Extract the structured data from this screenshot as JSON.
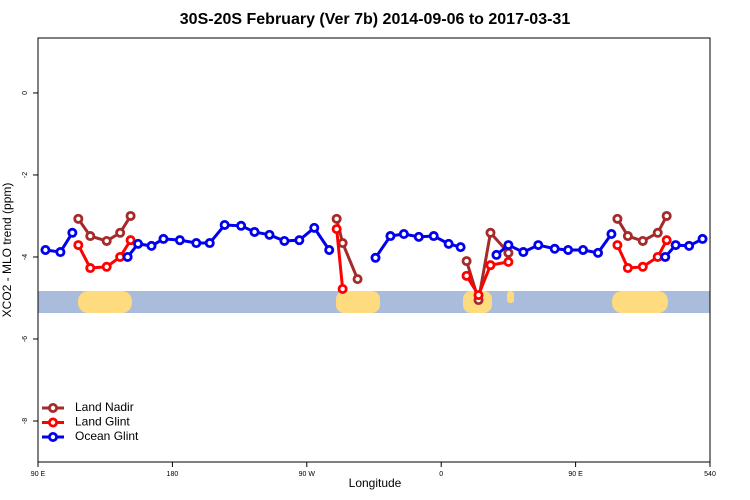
{
  "chart_data": {
    "type": "line",
    "title": "30S-20S February (Ver 7b)   2014-09-06 to 2017-03-31",
    "x_label": "Longitude",
    "y_label": "XCO2 - MLO trend (ppm)",
    "xlim": [
      90,
      540
    ],
    "ylim": [
      -9,
      1.34
    ],
    "xticks": [
      {
        "value": 90,
        "label": "90 E"
      },
      180,
      {
        "value": 270,
        "label": "90 W"
      },
      {
        "value": 360,
        "label": "0"
      },
      {
        "value": 450,
        "label": "90 E"
      },
      540
    ],
    "yticks": [
      0,
      -2,
      -4,
      -6,
      -8
    ],
    "legend": "bottom left",
    "series": [
      {
        "name": "Land Nadir",
        "color": "#a52a2a",
        "x": [
          117,
          125,
          136,
          145,
          152,
          220,
          290,
          294,
          304,
          340,
          377,
          385,
          393,
          405,
          440,
          478,
          485,
          495,
          505,
          511
        ],
        "values": [
          -3.07,
          -3.49,
          -3.61,
          -3.41,
          -3.0,
          null,
          -3.07,
          -3.66,
          -4.54,
          null,
          -4.1,
          -5.05,
          -3.41,
          -3.9,
          null,
          -3.07,
          -3.49,
          -3.61,
          -3.41,
          -3.0
        ]
      },
      {
        "name": "Land Glint",
        "color": "#ff0000",
        "x": [
          117,
          125,
          136,
          145,
          152,
          220,
          290,
          294,
          340,
          377,
          385,
          393,
          405,
          440,
          478,
          485,
          495,
          505,
          511
        ],
        "values": [
          -3.71,
          -4.27,
          -4.24,
          -4.0,
          -3.59,
          null,
          -3.32,
          -4.78,
          null,
          -4.46,
          -4.93,
          -4.2,
          -4.12,
          null,
          -3.71,
          -4.27,
          -4.24,
          -4.0,
          -3.59
        ]
      },
      {
        "name": "Ocean Glint",
        "color": "#0000ee",
        "x": [
          95,
          105,
          113,
          130,
          150,
          157,
          166,
          174,
          185,
          196,
          205,
          215,
          226,
          235,
          245,
          255,
          265,
          275,
          285,
          300,
          316,
          326,
          335,
          345,
          355,
          365,
          373,
          385,
          397,
          405,
          415,
          425,
          436,
          445,
          455,
          465,
          474,
          490,
          510,
          517,
          526,
          535
        ],
        "values": [
          -3.83,
          -3.88,
          -3.41,
          null,
          -4.0,
          -3.68,
          -3.73,
          -3.56,
          -3.59,
          -3.66,
          -3.66,
          -3.22,
          -3.24,
          -3.39,
          -3.46,
          -3.61,
          -3.59,
          -3.29,
          -3.83,
          null,
          -4.02,
          -3.49,
          -3.44,
          -3.51,
          -3.49,
          -3.68,
          -3.76,
          null,
          -3.95,
          -3.71,
          -3.88,
          -3.71,
          -3.8,
          -3.83,
          -3.83,
          -3.9,
          -3.44,
          null,
          -4.0,
          -3.71,
          -3.73,
          -3.56
        ]
      }
    ]
  }
}
